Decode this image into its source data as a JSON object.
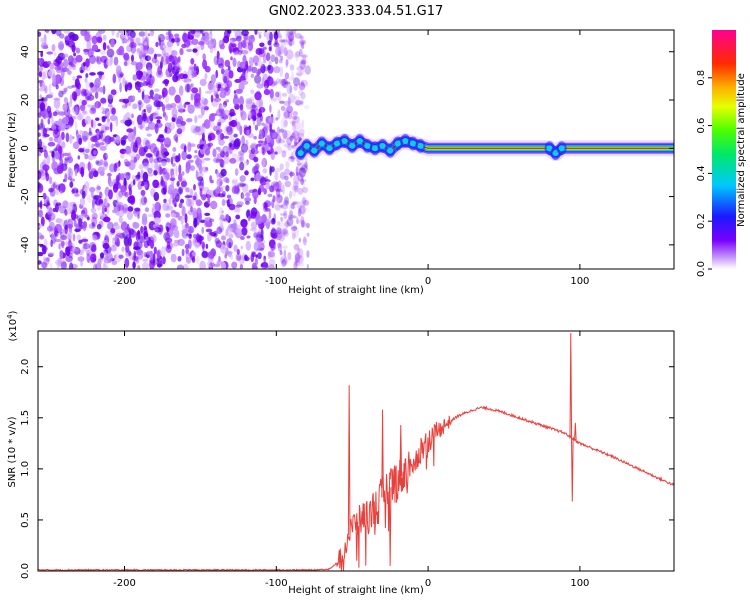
{
  "title": "GN02.2023.333.04.51.G17",
  "chart_data": [
    {
      "type": "heatmap",
      "xlabel": "Height of straight line (km)",
      "ylabel": "Frequency (Hz)",
      "xlim": [
        -257,
        162
      ],
      "ylim": [
        -50,
        49
      ],
      "xticks": [
        -200,
        -100,
        0,
        100
      ],
      "yticks": [
        -40,
        -20,
        0,
        20,
        40
      ],
      "colorbar": {
        "label": "Normalized spectral amplitude",
        "range": [
          0,
          1
        ],
        "ticks": [
          0.0,
          0.2,
          0.4,
          0.6,
          0.8
        ],
        "colormap": "rainbow (violet-blue-cyan-green-yellow-red-magenta)"
      },
      "noise_region_x": [
        -257,
        -83
      ],
      "signal_trace": [
        {
          "x": -84,
          "f": -2
        },
        {
          "x": -80,
          "f": 1
        },
        {
          "x": -75,
          "f": -1
        },
        {
          "x": -70,
          "f": 2
        },
        {
          "x": -65,
          "f": 0
        },
        {
          "x": -60,
          "f": 2
        },
        {
          "x": -55,
          "f": 3
        },
        {
          "x": -50,
          "f": 1
        },
        {
          "x": -45,
          "f": 3
        },
        {
          "x": -40,
          "f": 1
        },
        {
          "x": -35,
          "f": 0
        },
        {
          "x": -30,
          "f": 1
        },
        {
          "x": -25,
          "f": -1
        },
        {
          "x": -20,
          "f": 2
        },
        {
          "x": -15,
          "f": 3
        },
        {
          "x": -10,
          "f": 2
        },
        {
          "x": -5,
          "f": 1
        },
        {
          "x": 0,
          "f": 0
        },
        {
          "x": 80,
          "f": 0
        },
        {
          "x": 84,
          "f": -2
        },
        {
          "x": 88,
          "f": 0
        },
        {
          "x": 162,
          "f": 0
        }
      ]
    },
    {
      "type": "line",
      "xlabel": "Height of straight line (km)",
      "ylabel": "SNR (10 * v/v)",
      "y_multiplier_label": "(x10",
      "y_multiplier_exp": "4",
      "y_multiplier_close": ")",
      "xlim": [
        -257,
        162
      ],
      "ylim": [
        0,
        2.35
      ],
      "xticks": [
        -200,
        -100,
        0,
        100
      ],
      "yticks": [
        0.0,
        0.5,
        1.0,
        1.5,
        2.0
      ],
      "color": "#e8413c",
      "series": [
        {
          "points": [
            [
              -257,
              0.01
            ],
            [
              -200,
              0.01
            ],
            [
              -150,
              0.01
            ],
            [
              -100,
              0.01
            ],
            [
              -75,
              0.01
            ],
            [
              -65,
              0.02
            ],
            [
              -60,
              0.08
            ],
            [
              -55,
              0.22
            ],
            [
              -52,
              0.35
            ],
            [
              -50,
              0.45
            ],
            [
              -45,
              0.5
            ],
            [
              -40,
              0.55
            ],
            [
              -35,
              0.62
            ],
            [
              -30,
              0.72
            ],
            [
              -25,
              0.82
            ],
            [
              -20,
              0.9
            ],
            [
              -15,
              0.98
            ],
            [
              -10,
              1.08
            ],
            [
              -5,
              1.18
            ],
            [
              0,
              1.28
            ],
            [
              10,
              1.42
            ],
            [
              20,
              1.52
            ],
            [
              30,
              1.58
            ],
            [
              35,
              1.6
            ],
            [
              40,
              1.59
            ],
            [
              50,
              1.55
            ],
            [
              60,
              1.5
            ],
            [
              70,
              1.45
            ],
            [
              80,
              1.4
            ],
            [
              90,
              1.35
            ],
            [
              95,
              1.3
            ],
            [
              100,
              1.25
            ],
            [
              110,
              1.19
            ],
            [
              120,
              1.13
            ],
            [
              130,
              1.06
            ],
            [
              140,
              0.99
            ],
            [
              150,
              0.92
            ],
            [
              162,
              0.84
            ]
          ],
          "spikes": [
            {
              "x": -52,
              "y": 1.82
            },
            {
              "x": -47,
              "y": 0.1
            },
            {
              "x": -30,
              "y": 1.58
            },
            {
              "x": -25,
              "y": 0.05
            },
            {
              "x": -18,
              "y": 1.43
            },
            {
              "x": 94,
              "y": 2.33
            },
            {
              "x": 95,
              "y": 0.68
            },
            {
              "x": 97,
              "y": 1.45
            }
          ]
        }
      ]
    }
  ]
}
